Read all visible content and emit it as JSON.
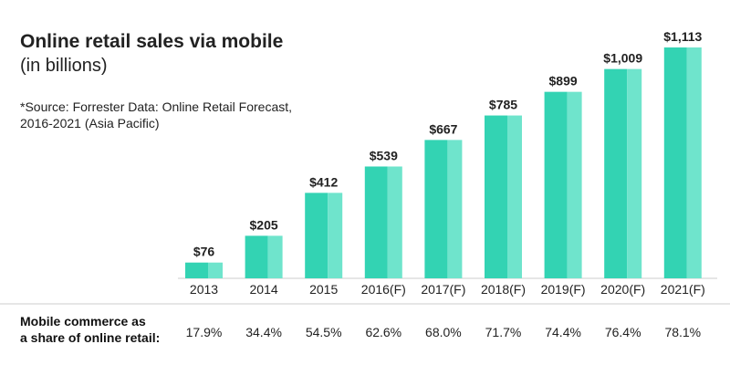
{
  "header": {
    "title": "Online retail sales via mobile",
    "subtitle": "(in billions)",
    "source": "*Source: Forrester Data: Online Retail Forecast, 2016-2021 (Asia Pacific)"
  },
  "share_row": {
    "label_line1": "Mobile commerce as",
    "label_line2": "a share of online retail:",
    "values": [
      "17.9%",
      "34.4%",
      "54.5%",
      "62.6%",
      "68.0%",
      "71.7%",
      "74.4%",
      "76.4%",
      "78.1%"
    ]
  },
  "colors": {
    "bar_main": "#33d3b3",
    "bar_highlight": "#6fe4cc",
    "axis_line": "#cccccc",
    "text": "#222222"
  },
  "chart_data": {
    "type": "bar",
    "title": "Online retail sales via mobile",
    "subtitle": "(in billions)",
    "categories": [
      "2013",
      "2014",
      "2015",
      "2016(F)",
      "2017(F)",
      "2018(F)",
      "2019(F)",
      "2020(F)",
      "2021(F)"
    ],
    "values": [
      76,
      205,
      412,
      539,
      667,
      785,
      899,
      1009,
      1113
    ],
    "data_labels": [
      "$76",
      "$205",
      "$412",
      "$539",
      "$667",
      "$785",
      "$899",
      "$1,009",
      "$1,113"
    ],
    "xlabel": "",
    "ylabel": "",
    "ylim": [
      0,
      1113
    ],
    "grid": false,
    "legend": "none"
  }
}
